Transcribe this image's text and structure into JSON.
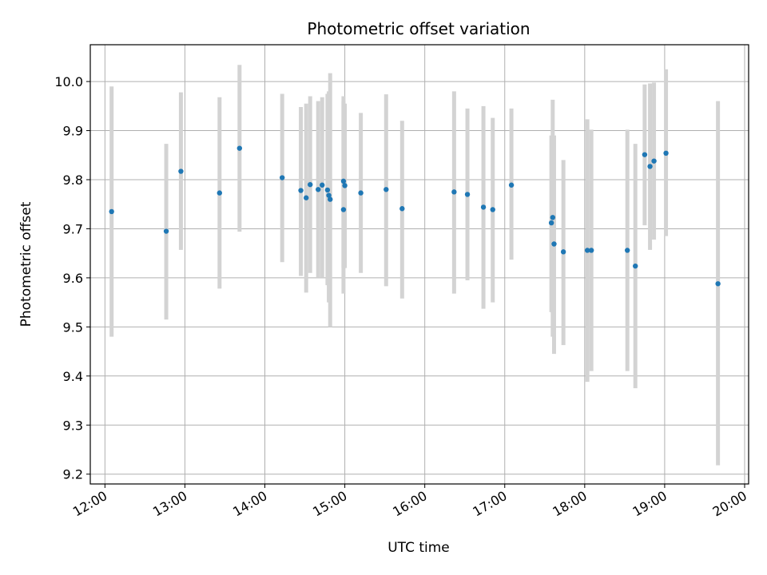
{
  "chart_data": {
    "type": "scatter",
    "title": "Photometric offset variation",
    "xlabel": "UTC time",
    "ylabel": "Photometric offset",
    "x_ticks": [
      "12:00",
      "13:00",
      "14:00",
      "15:00",
      "16:00",
      "17:00",
      "18:00",
      "19:00",
      "20:00"
    ],
    "y_ticks": [
      "9.2",
      "9.3",
      "9.4",
      "9.5",
      "9.6",
      "9.7",
      "9.8",
      "9.9",
      "10.0"
    ],
    "xlim": [
      "11:49",
      "20:03"
    ],
    "ylim": [
      9.18,
      10.075
    ],
    "grid": true,
    "colors": {
      "points": "#1f77b4",
      "errorbars": "#d3d3d3",
      "grid": "#b0b0b0"
    },
    "points": [
      {
        "x": "12:05",
        "y": 9.735,
        "lo": 9.48,
        "hi": 9.99
      },
      {
        "x": "12:46",
        "y": 9.695,
        "lo": 9.515,
        "hi": 9.873
      },
      {
        "x": "12:57",
        "y": 9.817,
        "lo": 9.657,
        "hi": 9.978
      },
      {
        "x": "13:26",
        "y": 9.773,
        "lo": 9.578,
        "hi": 9.968
      },
      {
        "x": "13:41",
        "y": 9.864,
        "lo": 9.694,
        "hi": 10.034
      },
      {
        "x": "14:13",
        "y": 9.804,
        "lo": 9.632,
        "hi": 9.975
      },
      {
        "x": "14:27",
        "y": 9.778,
        "lo": 9.604,
        "hi": 9.948
      },
      {
        "x": "14:31",
        "y": 9.763,
        "lo": 9.57,
        "hi": 9.955
      },
      {
        "x": "14:34",
        "y": 9.79,
        "lo": 9.61,
        "hi": 9.97
      },
      {
        "x": "14:40",
        "y": 9.78,
        "lo": 9.6,
        "hi": 9.96
      },
      {
        "x": "14:43",
        "y": 9.789,
        "lo": 9.6,
        "hi": 9.968
      },
      {
        "x": "14:47",
        "y": 9.779,
        "lo": 9.585,
        "hi": 9.975
      },
      {
        "x": "14:48",
        "y": 9.768,
        "lo": 9.55,
        "hi": 9.98
      },
      {
        "x": "14:49",
        "y": 9.76,
        "lo": 9.5,
        "hi": 10.017
      },
      {
        "x": "14:59",
        "y": 9.739,
        "lo": 9.568,
        "hi": 9.97
      },
      {
        "x": "14:59",
        "y": 9.797,
        "lo": 9.62,
        "hi": 9.96
      },
      {
        "x": "15:00",
        "y": 9.788,
        "lo": 9.62,
        "hi": 9.955
      },
      {
        "x": "15:12",
        "y": 9.773,
        "lo": 9.61,
        "hi": 9.936
      },
      {
        "x": "15:31",
        "y": 9.78,
        "lo": 9.583,
        "hi": 9.974
      },
      {
        "x": "15:43",
        "y": 9.741,
        "lo": 9.558,
        "hi": 9.92
      },
      {
        "x": "16:22",
        "y": 9.775,
        "lo": 9.568,
        "hi": 9.98
      },
      {
        "x": "16:32",
        "y": 9.77,
        "lo": 9.595,
        "hi": 9.945
      },
      {
        "x": "16:44",
        "y": 9.744,
        "lo": 9.537,
        "hi": 9.95
      },
      {
        "x": "16:51",
        "y": 9.739,
        "lo": 9.55,
        "hi": 9.926
      },
      {
        "x": "17:05",
        "y": 9.789,
        "lo": 9.637,
        "hi": 9.945
      },
      {
        "x": "17:35",
        "y": 9.712,
        "lo": 9.53,
        "hi": 9.89
      },
      {
        "x": "17:36",
        "y": 9.723,
        "lo": 9.48,
        "hi": 9.963
      },
      {
        "x": "17:37",
        "y": 9.669,
        "lo": 9.445,
        "hi": 9.89
      },
      {
        "x": "17:44",
        "y": 9.653,
        "lo": 9.463,
        "hi": 9.84
      },
      {
        "x": "18:02",
        "y": 9.656,
        "lo": 9.388,
        "hi": 9.923
      },
      {
        "x": "18:05",
        "y": 9.656,
        "lo": 9.41,
        "hi": 9.902
      },
      {
        "x": "18:32",
        "y": 9.656,
        "lo": 9.41,
        "hi": 9.902
      },
      {
        "x": "18:38",
        "y": 9.624,
        "lo": 9.375,
        "hi": 9.873
      },
      {
        "x": "18:45",
        "y": 9.851,
        "lo": 9.707,
        "hi": 9.994
      },
      {
        "x": "18:49",
        "y": 9.827,
        "lo": 9.657,
        "hi": 9.996
      },
      {
        "x": "18:52",
        "y": 9.838,
        "lo": 9.678,
        "hi": 9.998
      },
      {
        "x": "19:01",
        "y": 9.854,
        "lo": 9.685,
        "hi": 10.025
      },
      {
        "x": "19:40",
        "y": 9.588,
        "lo": 9.218,
        "hi": 9.96
      }
    ]
  }
}
